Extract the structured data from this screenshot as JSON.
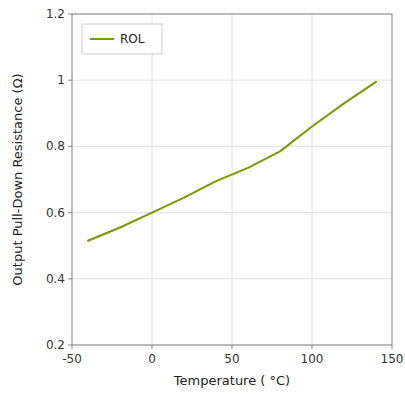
{
  "chart_data": {
    "type": "line",
    "x": [
      -40,
      -20,
      0,
      20,
      40,
      60,
      80,
      100,
      120,
      140
    ],
    "series": [
      {
        "name": "ROL",
        "color": "#7a9a01",
        "values": [
          0.515,
          0.555,
          0.6,
          0.645,
          0.695,
          0.735,
          0.785,
          0.86,
          0.93,
          0.995
        ]
      }
    ],
    "x_label": "Temperature ( °C)",
    "y_label": "Output Pull-Down Resistance (Ω)",
    "xlim": [
      -50,
      150
    ],
    "ylim": [
      0.2,
      1.2
    ],
    "xticks": [
      -50,
      0,
      50,
      100,
      150
    ],
    "yticks": [
      0.2,
      0.4,
      0.6,
      0.8,
      1,
      1.2
    ],
    "grid": true,
    "legend": "upper left"
  }
}
